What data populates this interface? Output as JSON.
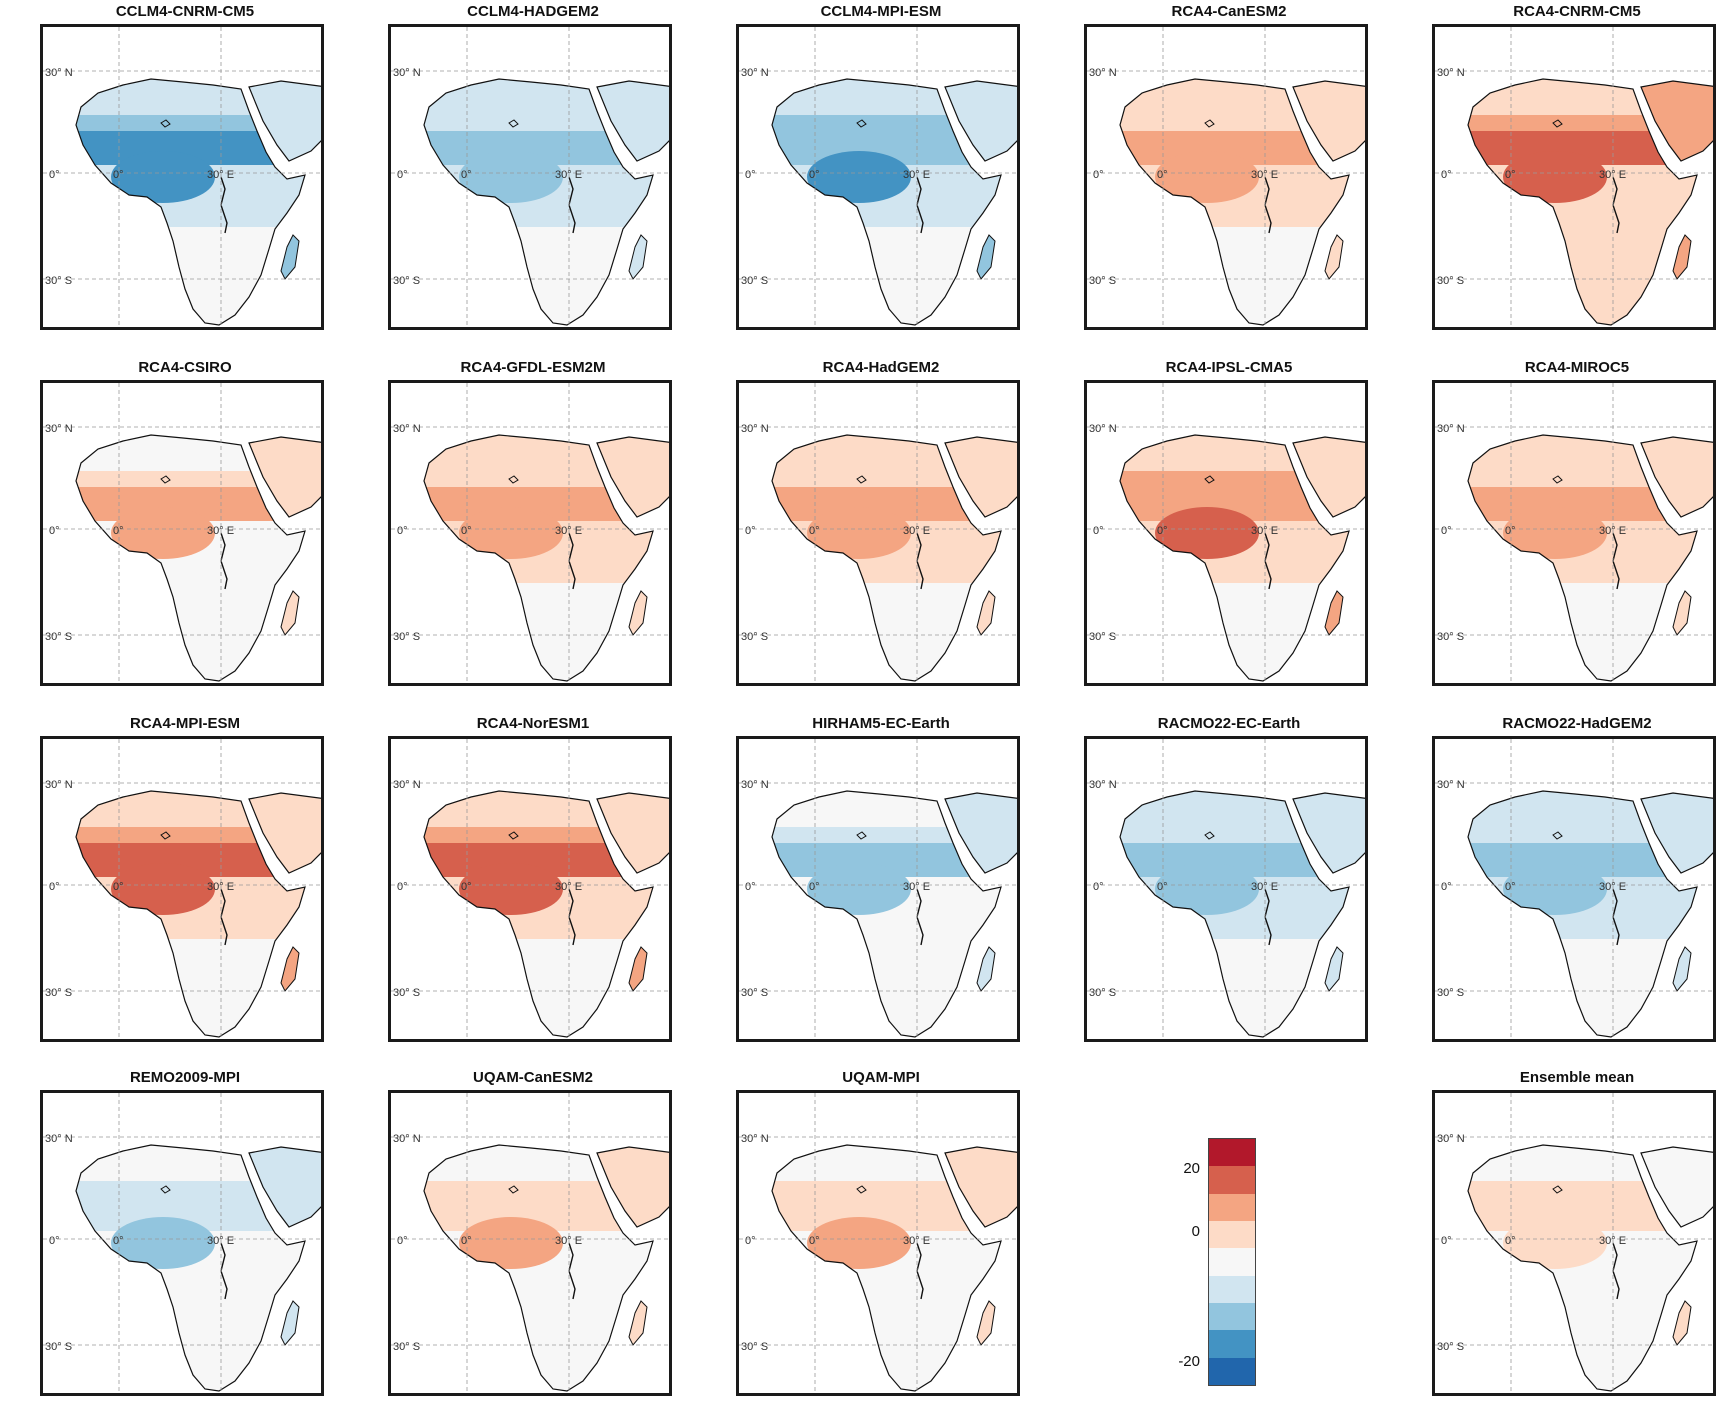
{
  "panels": [
    {
      "title": "CCLM4-CNRM-CM5",
      "sign": -1,
      "mag": 0.75
    },
    {
      "title": "CCLM4-HADGEM2",
      "sign": -1,
      "mag": 0.6
    },
    {
      "title": "CCLM4-MPI-ESM",
      "sign": -1,
      "mag": 0.7
    },
    {
      "title": "RCA4-CanESM2",
      "sign": 1,
      "mag": 0.6
    },
    {
      "title": "RCA4-CNRM-CM5",
      "sign": 1,
      "mag": 0.85
    },
    {
      "title": "RCA4-CSIRO",
      "sign": 1,
      "mag": 0.45
    },
    {
      "title": "RCA4-GFDL-ESM2M",
      "sign": 1,
      "mag": 0.6
    },
    {
      "title": "RCA4-HadGEM2",
      "sign": 1,
      "mag": 0.6
    },
    {
      "title": "RCA4-IPSL-CMA5",
      "sign": 1,
      "mag": 0.7
    },
    {
      "title": "RCA4-MIROC5",
      "sign": 1,
      "mag": 0.6
    },
    {
      "title": "RCA4-MPI-ESM",
      "sign": 1,
      "mag": 0.75
    },
    {
      "title": "RCA4-NorESM1",
      "sign": 1,
      "mag": 0.75
    },
    {
      "title": "HIRHAM5-EC-Earth",
      "sign": -1,
      "mag": 0.45
    },
    {
      "title": "RACMO22-EC-Earth",
      "sign": -1,
      "mag": 0.5
    },
    {
      "title": "RACMO22-HadGEM2",
      "sign": -1,
      "mag": 0.55
    },
    {
      "title": "REMO2009-MPI",
      "sign": -1,
      "mag": 0.4
    },
    {
      "title": "UQAM-CanESM2",
      "sign": 1,
      "mag": 0.4
    },
    {
      "title": "UQAM-MPI",
      "sign": 1,
      "mag": 0.4
    },
    {
      "title": "Ensemble mean",
      "sign": 1,
      "mag": 0.25
    }
  ],
  "labels": {
    "lat_north": "30° N",
    "lat_equator": "0°",
    "lat_south": "30° S",
    "lon_zero": "0°",
    "lon_east": "30° E"
  },
  "colorbar": {
    "ticks": [
      "20",
      "0",
      "-20"
    ],
    "colors": [
      "#b2182b",
      "#d6604d",
      "#f4a582",
      "#fddbc7",
      "#f7f7f7",
      "#d1e5f0",
      "#92c5de",
      "#4393c3",
      "#2166ac"
    ]
  }
}
